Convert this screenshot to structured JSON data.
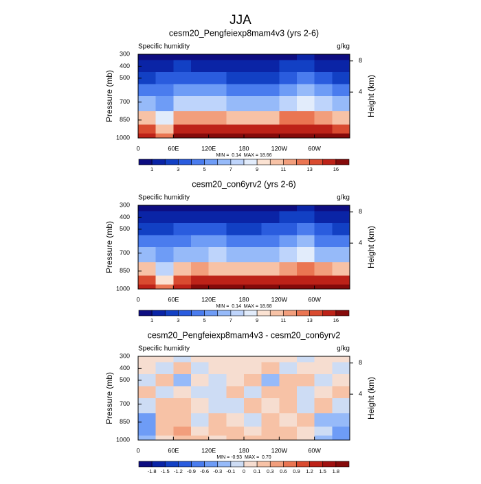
{
  "title": "JJA",
  "chart_data": [
    {
      "type": "contour",
      "title": "cesm20_Pengfeiexp8mam4v3 (yrs 2-6)",
      "left_string": "Specific humidity",
      "right_string": "g/kg",
      "ylabel": "Pressure (mb)",
      "y2label": "Height (km)",
      "annotation": "MIN =  0.14  MAX = 18.66",
      "xlim": [
        0,
        360
      ],
      "xticks": [
        0,
        {
          "value": 60,
          "label": "60E"
        },
        {
          "value": 120,
          "label": "120E"
        },
        180,
        {
          "value": 240,
          "label": "120W"
        },
        {
          "value": 300,
          "label": "60W"
        }
      ],
      "ylim": [
        1000,
        300
      ],
      "yticks": [
        300,
        400,
        500,
        700,
        850,
        1000
      ],
      "y2ticks": [
        4,
        8
      ],
      "levels": [
        1,
        2,
        3,
        4,
        5,
        6,
        7,
        8,
        9,
        10,
        11,
        12,
        13,
        14,
        16
      ],
      "colorbar_ticks": [
        1,
        3,
        5,
        7,
        9,
        11,
        13,
        16
      ],
      "colors": [
        "#0d0d80",
        "#0a24a6",
        "#1240c4",
        "#2a5cde",
        "#4a7cee",
        "#6e9cf6",
        "#96baf9",
        "#bed4fb",
        "#e2ecfb",
        "#fbe2d2",
        "#f7c2a6",
        "#f29e7c",
        "#ea7552",
        "#d94b30",
        "#bd2218",
        "#850a0a"
      ],
      "field": {
        "x": [
          15,
          45,
          75,
          105,
          135,
          165,
          195,
          225,
          255,
          285,
          315,
          345
        ],
        "y": [
          300,
          400,
          500,
          600,
          700,
          850,
          925,
          1000
        ],
        "values": [
          [
            0.6,
            0.8,
            0.9,
            0.8,
            0.7,
            0.6,
            0.6,
            0.7,
            0.9,
            1.0,
            0.8,
            0.6
          ],
          [
            1.5,
            1.8,
            2.0,
            1.8,
            1.6,
            1.4,
            1.4,
            1.6,
            2.2,
            2.6,
            1.8,
            1.5
          ],
          [
            2.8,
            3.0,
            3.2,
            3.2,
            3.0,
            2.6,
            2.5,
            2.8,
            3.6,
            4.2,
            3.0,
            2.8
          ],
          [
            4.5,
            4.0,
            5.0,
            5.0,
            5.0,
            4.5,
            4.2,
            4.5,
            5.5,
            6.2,
            5.0,
            4.5
          ],
          [
            6.5,
            5.5,
            7.0,
            7.0,
            7.0,
            6.5,
            6.2,
            6.5,
            7.5,
            8.5,
            7.0,
            6.5
          ],
          [
            10,
            8,
            11,
            11.5,
            11,
            10.5,
            10,
            10.5,
            12,
            12.5,
            11,
            10
          ],
          [
            13,
            10,
            14,
            15,
            15,
            15,
            14.5,
            14.5,
            15,
            15.5,
            14,
            13.5
          ],
          [
            15,
            12,
            16,
            17,
            17,
            17.5,
            17,
            17,
            17,
            17.5,
            16.5,
            16
          ]
        ]
      }
    },
    {
      "type": "contour",
      "title": "cesm20_con6yrv2 (yrs 2-6)",
      "left_string": "Specific humidity",
      "right_string": "g/kg",
      "ylabel": "Pressure (mb)",
      "y2label": "Height (km)",
      "annotation": "MIN =  0.14  MAX = 18.68",
      "xlim": [
        0,
        360
      ],
      "xticks": [
        0,
        {
          "value": 60,
          "label": "60E"
        },
        {
          "value": 120,
          "label": "120E"
        },
        180,
        {
          "value": 240,
          "label": "120W"
        },
        {
          "value": 300,
          "label": "60W"
        }
      ],
      "ylim": [
        1000,
        300
      ],
      "yticks": [
        300,
        400,
        500,
        700,
        850,
        1000
      ],
      "y2ticks": [
        4,
        8
      ],
      "levels": [
        1,
        2,
        3,
        4,
        5,
        6,
        7,
        8,
        9,
        10,
        11,
        12,
        13,
        14,
        16
      ],
      "colorbar_ticks": [
        1,
        3,
        5,
        7,
        9,
        11,
        13,
        16
      ],
      "colors": [
        "#0d0d80",
        "#0a24a6",
        "#1240c4",
        "#2a5cde",
        "#4a7cee",
        "#6e9cf6",
        "#96baf9",
        "#bed4fb",
        "#e2ecfb",
        "#fbe2d2",
        "#f7c2a6",
        "#f29e7c",
        "#ea7552",
        "#d94b30",
        "#bd2218",
        "#850a0a"
      ],
      "field": {
        "x": [
          15,
          45,
          75,
          105,
          135,
          165,
          195,
          225,
          255,
          285,
          315,
          345
        ],
        "y": [
          300,
          400,
          500,
          600,
          700,
          850,
          925,
          1000
        ],
        "values": [
          [
            0.6,
            0.75,
            0.95,
            0.8,
            0.65,
            0.6,
            0.6,
            0.65,
            0.9,
            1.05,
            0.8,
            0.6
          ],
          [
            1.45,
            1.9,
            1.9,
            1.85,
            1.55,
            1.4,
            1.35,
            1.5,
            2.25,
            2.55,
            1.8,
            1.55
          ],
          [
            2.85,
            2.9,
            3.35,
            3.15,
            3.1,
            2.55,
            2.4,
            3.0,
            3.5,
            4.05,
            3.05,
            2.8
          ],
          [
            4.4,
            4.05,
            4.95,
            5.1,
            5.05,
            4.4,
            4.25,
            4.35,
            5.3,
            6.3,
            4.95,
            4.4
          ],
          [
            6.6,
            5.3,
            6.9,
            6.95,
            7.1,
            6.55,
            6.1,
            6.45,
            7.35,
            8.55,
            6.9,
            6.6
          ],
          [
            10.4,
            7.85,
            10.8,
            11.6,
            10.9,
            10.45,
            10.1,
            10.4,
            11.95,
            12.4,
            11.15,
            10.3
          ],
          [
            13.5,
            9.9,
            13.7,
            14.95,
            14.9,
            14.9,
            14.45,
            14.35,
            14.8,
            15.5,
            14.1,
            14.1
          ],
          [
            15.3,
            12,
            15.8,
            16.9,
            16.95,
            17.35,
            16.9,
            16.9,
            16.9,
            17.45,
            16.7,
            16.4
          ]
        ]
      }
    },
    {
      "type": "contour",
      "title": "cesm20_Pengfeiexp8mam4v3 - cesm20_con6yrv2",
      "left_string": "Specific humidity",
      "right_string": "g/kg",
      "ylabel": "Pressure (mb)",
      "y2label": "Height (km)",
      "annotation": "MIN = -0.93  MAX =  0.70",
      "xlim": [
        0,
        360
      ],
      "xticks": [
        0,
        {
          "value": 60,
          "label": "60E"
        },
        {
          "value": 120,
          "label": "120E"
        },
        180,
        {
          "value": 240,
          "label": "120W"
        },
        {
          "value": 300,
          "label": "60W"
        }
      ],
      "ylim": [
        1000,
        300
      ],
      "yticks": [
        300,
        400,
        500,
        700,
        850,
        1000
      ],
      "y2ticks": [
        4,
        8
      ],
      "levels": [
        -1.8,
        -1.5,
        -1.2,
        -0.9,
        -0.6,
        -0.3,
        -0.1,
        0,
        0.1,
        0.3,
        0.6,
        0.9,
        1.2,
        1.5,
        1.8
      ],
      "colorbar_ticks": [
        -1.8,
        -1.5,
        -1.2,
        -0.9,
        -0.6,
        -0.3,
        -0.1,
        0,
        0.1,
        0.3,
        0.6,
        0.9,
        1.2,
        1.5,
        1.8
      ],
      "colors": [
        "#0d0d80",
        "#0a24a6",
        "#1240c4",
        "#2a5cde",
        "#4a7cee",
        "#6e9cf6",
        "#96baf9",
        "#cddcf4",
        "#f6ddd0",
        "#f7c2a6",
        "#f29e7c",
        "#ea7552",
        "#d94b30",
        "#bd2218",
        "#a01010",
        "#850a0a"
      ],
      "field": {
        "x": [
          15,
          45,
          75,
          105,
          135,
          165,
          195,
          225,
          255,
          285,
          315,
          345
        ],
        "y": [
          300,
          400,
          500,
          600,
          700,
          850,
          925,
          1000
        ],
        "values": [
          [
            0.0,
            0.05,
            -0.05,
            0.0,
            0.05,
            0.0,
            0.0,
            0.05,
            0.0,
            -0.05,
            0.0,
            0.0
          ],
          [
            0.05,
            -0.1,
            0.1,
            -0.05,
            0.05,
            0.0,
            0.05,
            0.1,
            -0.05,
            0.05,
            0.0,
            -0.05
          ],
          [
            -0.05,
            0.1,
            -0.15,
            0.05,
            -0.1,
            0.05,
            0.1,
            -0.2,
            0.1,
            0.15,
            -0.05,
            0.0
          ],
          [
            0.1,
            -0.05,
            0.05,
            -0.1,
            -0.05,
            0.1,
            -0.05,
            0.15,
            0.2,
            -0.1,
            0.05,
            0.1
          ],
          [
            -0.1,
            0.2,
            0.1,
            0.05,
            -0.1,
            -0.05,
            0.1,
            0.05,
            0.15,
            -0.05,
            0.1,
            -0.1
          ],
          [
            -0.4,
            0.15,
            0.2,
            -0.1,
            0.1,
            0.05,
            -0.1,
            0.1,
            0.05,
            0.1,
            -0.15,
            -0.3
          ],
          [
            -0.5,
            0.1,
            0.3,
            0.05,
            0.1,
            0.1,
            0.05,
            0.15,
            0.2,
            0.0,
            -0.1,
            -0.6
          ],
          [
            -0.3,
            0.0,
            0.2,
            0.1,
            0.05,
            0.15,
            0.1,
            0.1,
            0.1,
            0.05,
            -0.2,
            -0.4
          ]
        ]
      }
    }
  ]
}
